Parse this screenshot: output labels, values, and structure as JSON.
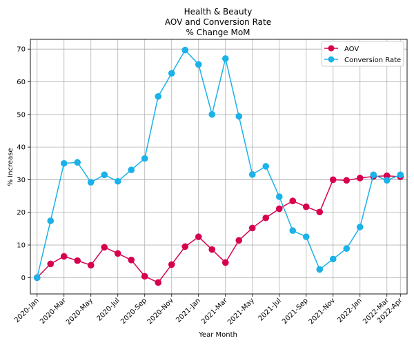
{
  "chart_data": {
    "type": "line",
    "title_lines": [
      "Health & Beauty",
      "AOV and Conversion Rate",
      "% Change MoM"
    ],
    "xlabel": "Year Month",
    "ylabel": "% Increase",
    "ylim": [
      -5,
      73
    ],
    "yticks": [
      0,
      10,
      20,
      30,
      40,
      50,
      60,
      70
    ],
    "x": [
      "2020-Jan",
      "2020-Feb",
      "2020-Mar",
      "2020-Apr",
      "2020-May",
      "2020-Jun",
      "2020-Jul",
      "2020-Aug",
      "2020-Sep",
      "2020-Oct",
      "2020-Nov",
      "2020-Dec",
      "2021-Jan",
      "2021-Feb",
      "2021-Mar",
      "2021-Apr",
      "2021-May",
      "2021-Jun",
      "2021-Jul",
      "2021-Aug",
      "2021-Sep",
      "2021-Oct",
      "2021-Nov",
      "2021-Dec",
      "2022-Jan",
      "2022-Feb",
      "2022-Mar",
      "2022-Apr"
    ],
    "xticks": [
      "2020-Jan",
      "2020-Mar",
      "2020-May",
      "2020-Jul",
      "2020-Sep",
      "2020-Nov",
      "2021-Jan",
      "2021-Mar",
      "2021-May",
      "2021-Jul",
      "2021-Sep",
      "2021-Nov",
      "2022-Jan",
      "2022-Mar",
      "2022-Apr"
    ],
    "grid": true,
    "legend_position": "top-right",
    "series": [
      {
        "name": "AOV",
        "color": "#d6004f",
        "values": [
          0,
          4.2,
          6.5,
          5.2,
          3.8,
          9.3,
          7.4,
          5.4,
          0.4,
          -1.5,
          4.0,
          9.5,
          12.5,
          8.6,
          4.6,
          11.4,
          15.2,
          18.3,
          21.1,
          23.5,
          21.7,
          20.1,
          30.0,
          29.8,
          30.5,
          31.0,
          31.2,
          30.9
        ]
      },
      {
        "name": "Conversion Rate",
        "color": "#1ab2e8",
        "values": [
          0,
          17.4,
          35.0,
          35.3,
          29.2,
          31.5,
          29.5,
          33.0,
          36.5,
          55.5,
          62.6,
          69.7,
          65.3,
          50.0,
          67.1,
          49.4,
          31.6,
          34.1,
          24.8,
          14.4,
          12.5,
          2.5,
          5.7,
          8.9,
          15.5,
          31.5,
          29.8,
          31.5
        ]
      }
    ]
  }
}
